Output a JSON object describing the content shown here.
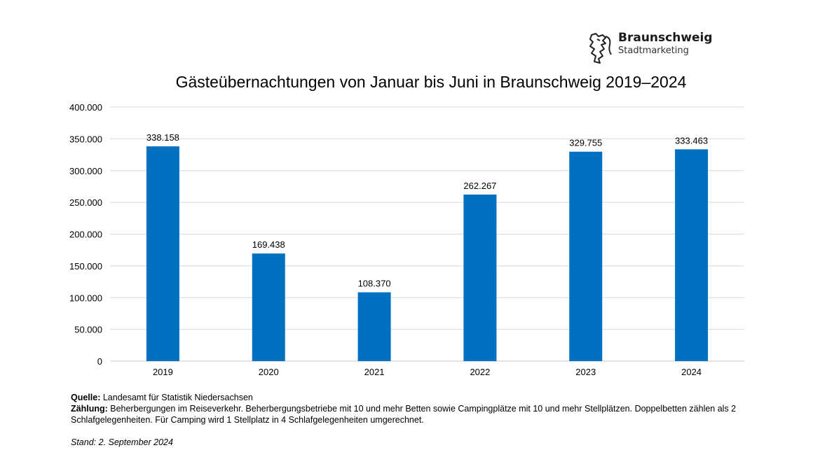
{
  "logo": {
    "title": "Braunschweig",
    "subtitle": "Stadtmarketing",
    "icon": "braunschweig-lion-icon"
  },
  "chart_data": {
    "type": "bar",
    "title": "Gästeübernachtungen von Januar bis Juni in Braunschweig 2019–2024",
    "xlabel": "",
    "ylabel": "",
    "categories": [
      "2019",
      "2020",
      "2021",
      "2022",
      "2023",
      "2024"
    ],
    "values": [
      338158,
      169438,
      108370,
      262267,
      329755,
      333463
    ],
    "data_labels": [
      "338.158",
      "169.438",
      "108.370",
      "262.267",
      "329.755",
      "333.463"
    ],
    "ylim": [
      0,
      400000
    ],
    "yticks": [
      0,
      50000,
      100000,
      150000,
      200000,
      250000,
      300000,
      350000,
      400000
    ],
    "ytick_labels": [
      "0",
      "50.000",
      "100.000",
      "150.000",
      "200.000",
      "250.000",
      "300.000",
      "350.000",
      "400.000"
    ],
    "grid": true,
    "bar_color": "#0070C0"
  },
  "footer": {
    "source_label": "Quelle:",
    "source_text": " Landesamt für Statistik Niedersachsen",
    "count_label": "Zählung:",
    "count_text": " Beherbergungen im Reiseverkehr. Beherbergungsbetriebe mit 10 und mehr Betten sowie Campingplätze mit 10 und mehr Stellplätzen. Doppelbetten zählen als 2 Schlafgelegenheiten. Für Camping wird 1 Stellplatz in 4 Schlafgelegenheiten umgerechnet.",
    "stand": "Stand: 2. September 2024"
  }
}
